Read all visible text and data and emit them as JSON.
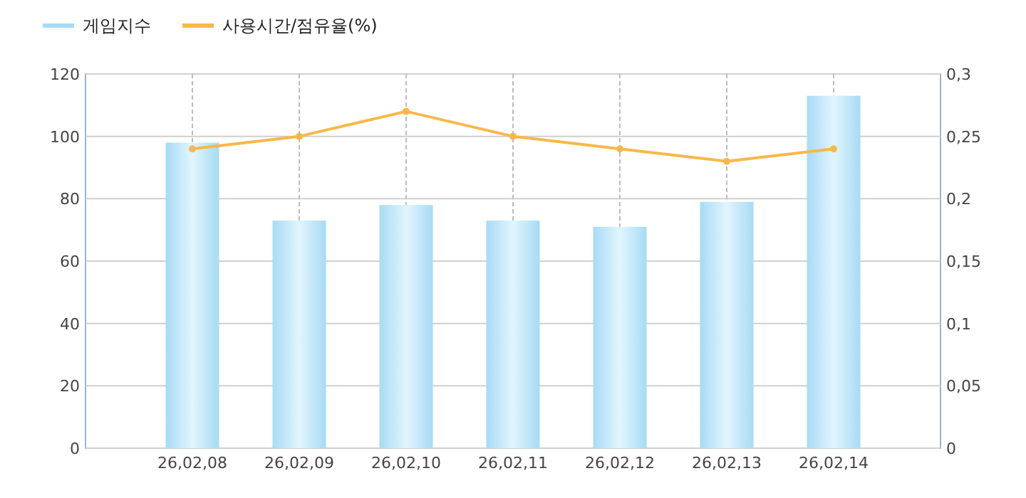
{
  "chart_data": {
    "type": "bar",
    "categories": [
      "26,02,08",
      "26,02,09",
      "26,02,10",
      "26,02,11",
      "26,02,12",
      "26,02,13",
      "26,02,14"
    ],
    "series": [
      {
        "name": "게임지수",
        "color": "#a6dbf5",
        "values": [
          98,
          73,
          78,
          73,
          71,
          79,
          113
        ]
      },
      {
        "name": "사용시간/점유율(%)",
        "type": "line",
        "axis": "y2",
        "color": "#f7b84a",
        "values": [
          0.24,
          0.25,
          0.27,
          0.25,
          0.24,
          0.23,
          0.24
        ]
      }
    ],
    "ylim": [
      0,
      120
    ],
    "yticks": [
      0,
      20,
      40,
      60,
      80,
      100,
      120
    ],
    "y2lim": [
      0,
      0.3
    ],
    "y2ticks": [
      {
        "value": 0,
        "label": "0"
      },
      {
        "value": 0.05,
        "label": "0,05"
      },
      {
        "value": 0.1,
        "label": "0,1"
      },
      {
        "value": 0.15,
        "label": "0,15"
      },
      {
        "value": 0.2,
        "label": "0,2"
      },
      {
        "value": 0.25,
        "label": "0,25"
      },
      {
        "value": 0.3,
        "label": "0,3"
      }
    ],
    "grid": true,
    "legend": "top left",
    "marker": "circle",
    "line_style": "solid"
  }
}
